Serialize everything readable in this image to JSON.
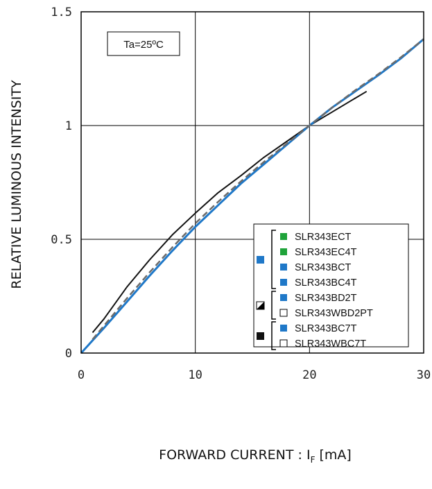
{
  "chart_data": {
    "type": "line",
    "title": "",
    "annotation": "Ta=25ºC",
    "xlabel": "FORWARD CURRENT : I",
    "xlabel_sub": "F",
    "xlabel_unit": " [mA]",
    "ylabel": "RELATIVE LUMINOUS INTENSITY",
    "xlim": [
      0,
      30
    ],
    "ylim": [
      0,
      1.5
    ],
    "xticks": [
      "0",
      "10",
      "20",
      "30"
    ],
    "yticks": [
      "0",
      "0.5",
      "1",
      "1.5"
    ],
    "grid": true,
    "legend_position": "bottom-right",
    "colors": {
      "blue": "#1f78c8",
      "green": "#1fa33a",
      "gray": "#6b6b6b",
      "black": "#111111"
    },
    "series": [
      {
        "name": "SLR343ECT / SLR343EC4T / SLR343BCT / SLR343BC4T",
        "style": "solid-blue",
        "x": [
          0,
          2,
          4,
          6,
          8,
          10,
          12,
          14,
          16,
          18,
          20,
          22,
          24,
          26,
          28,
          30
        ],
        "y": [
          0,
          0.11,
          0.225,
          0.34,
          0.45,
          0.555,
          0.65,
          0.745,
          0.83,
          0.915,
          1.0,
          1.08,
          1.15,
          1.22,
          1.295,
          1.38
        ]
      },
      {
        "name": "SLR343BD2T / SLR343WBD2PT",
        "style": "dashed-gray",
        "x": [
          1,
          2,
          4,
          6,
          8,
          10,
          12,
          14,
          16,
          18,
          20,
          22,
          24,
          26,
          28,
          30
        ],
        "y": [
          0.06,
          0.12,
          0.24,
          0.355,
          0.465,
          0.57,
          0.665,
          0.755,
          0.84,
          0.92,
          1.0,
          1.08,
          1.155,
          1.225,
          1.3,
          1.38
        ]
      },
      {
        "name": "SLR343BC7T / SLR343WBC7T",
        "style": "solid-black",
        "x": [
          1,
          2,
          4,
          6,
          8,
          10,
          12,
          14,
          16,
          18,
          20,
          22,
          24,
          25
        ],
        "y": [
          0.09,
          0.15,
          0.29,
          0.41,
          0.52,
          0.615,
          0.705,
          0.78,
          0.86,
          0.93,
          1.0,
          1.06,
          1.12,
          1.15
        ]
      }
    ]
  },
  "legend": {
    "groups": [
      {
        "marker": "blue",
        "items": [
          {
            "box": "green",
            "label": "SLR343ECT"
          },
          {
            "box": "green",
            "label": "SLR343EC4T"
          },
          {
            "box": "blue",
            "label": "SLR343BCT"
          },
          {
            "box": "blue",
            "label": "SLR343BC4T"
          }
        ]
      },
      {
        "marker": "half",
        "items": [
          {
            "box": "blue",
            "label": "SLR343BD2T"
          },
          {
            "box": "white",
            "label": "SLR343WBD2PT"
          }
        ]
      },
      {
        "marker": "black",
        "items": [
          {
            "box": "blue",
            "label": "SLR343BC7T"
          },
          {
            "box": "white",
            "label": "SLR343WBC7T"
          }
        ]
      }
    ]
  }
}
